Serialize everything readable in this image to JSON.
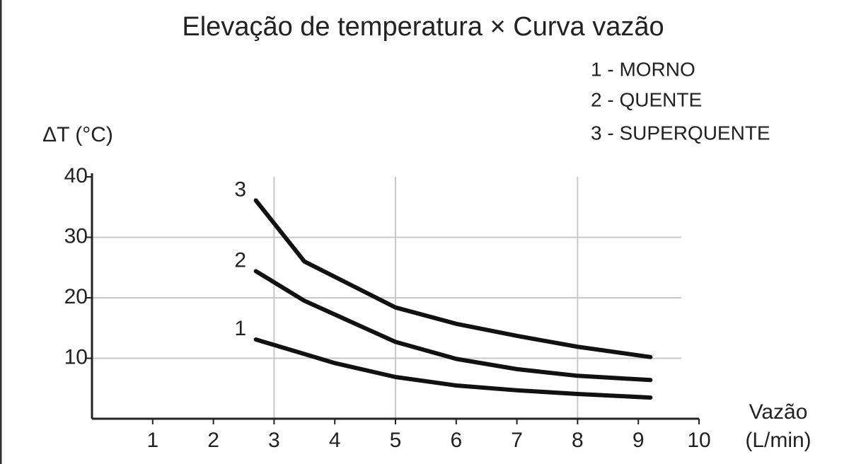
{
  "chart_data": {
    "type": "line",
    "title": "Elevação de temperatura × Curva vazão",
    "ylabel": "ΔT (°C)",
    "xlabel": [
      "Vazão",
      "(L/min)"
    ],
    "legend": [
      "1 - MORNO",
      "2 - QUENTE",
      "3 - SUPERQUENTE"
    ],
    "xlim": [
      0,
      10
    ],
    "xticks": [
      1,
      2,
      3,
      4,
      5,
      6,
      7,
      8,
      9,
      10
    ],
    "ylim": [
      0,
      40
    ],
    "yticks": [
      10,
      20,
      30,
      40
    ],
    "grid_x": [
      3,
      5,
      8
    ],
    "grid_y": [
      10,
      20,
      30
    ],
    "series": [
      {
        "name": "1",
        "color": "#111111",
        "x": [
          2.7,
          4,
          5,
          6,
          7,
          8,
          9.2
        ],
        "values": [
          13.1,
          9.2,
          6.9,
          5.5,
          4.7,
          4.1,
          3.5
        ]
      },
      {
        "name": "2",
        "color": "#111111",
        "x": [
          2.7,
          3.5,
          5,
          6,
          7,
          8,
          9.2
        ],
        "values": [
          24.4,
          19.5,
          12.7,
          9.9,
          8.2,
          7.1,
          6.4
        ]
      },
      {
        "name": "3",
        "color": "#111111",
        "x": [
          2.7,
          3.5,
          5,
          6,
          7,
          8,
          9.2
        ],
        "values": [
          36.1,
          26,
          18.4,
          15.7,
          13.7,
          11.9,
          10.2
        ]
      }
    ]
  }
}
